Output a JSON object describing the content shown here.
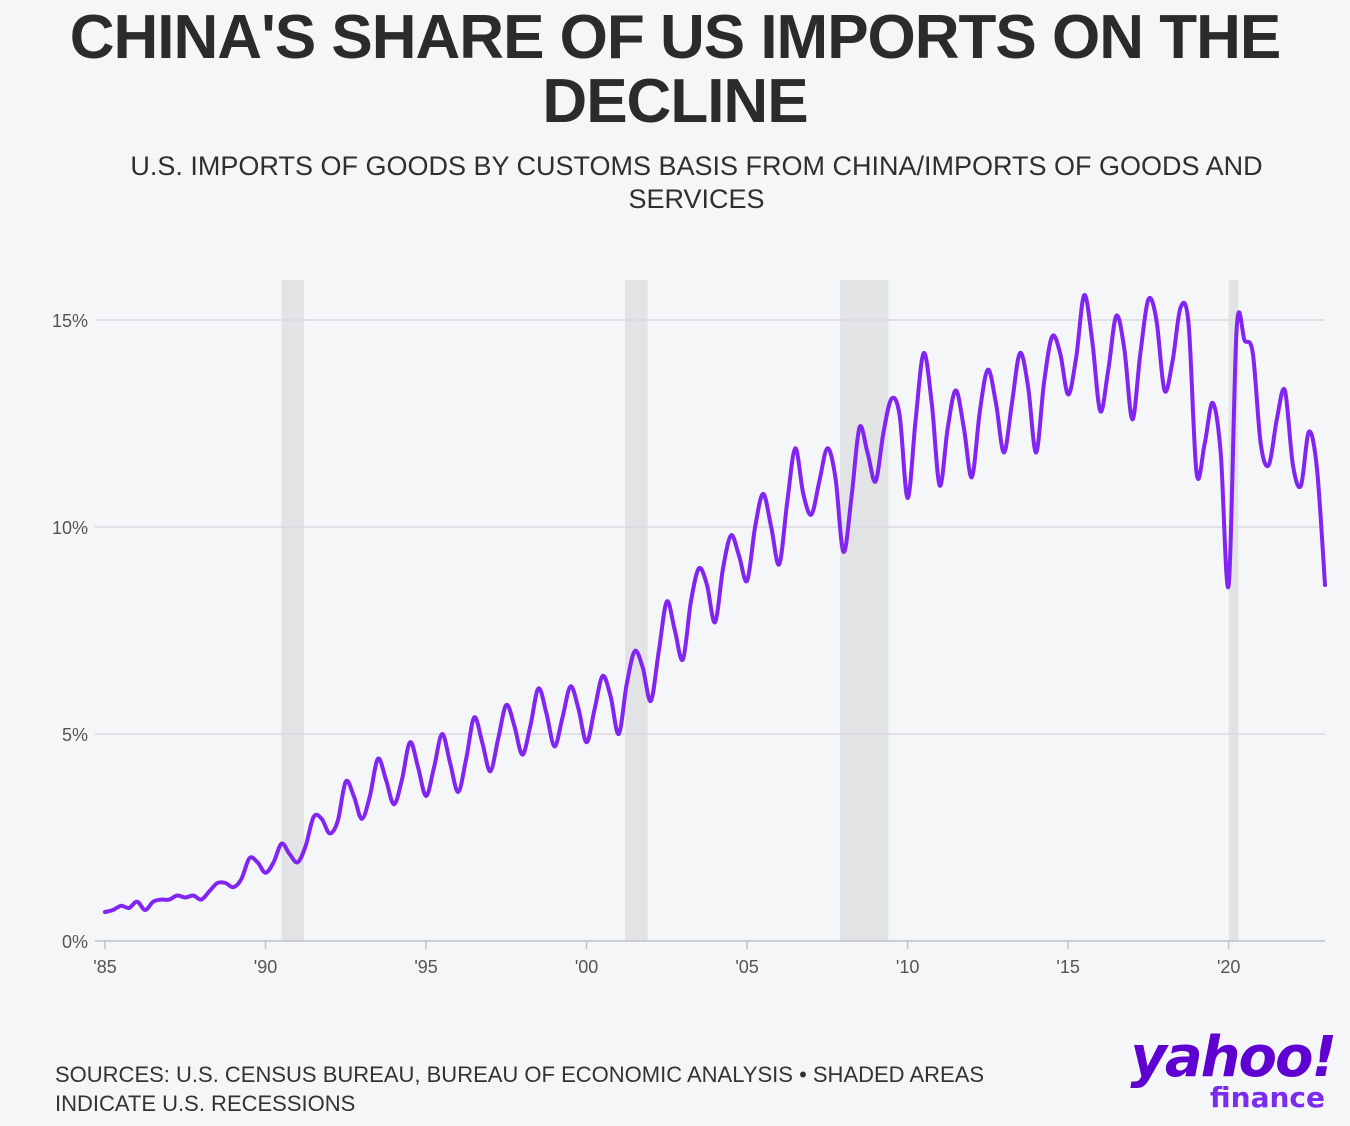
{
  "title": "CHINA'S SHARE OF US IMPORTS ON THE DECLINE",
  "subtitle": "U.S. IMPORTS OF GOODS BY CUSTOMS BASIS FROM CHINA/IMPORTS OF GOODS AND SERVICES",
  "source": "SOURCES: U.S. CENSUS BUREAU, BUREAU OF ECONOMIC ANALYSIS • SHADED AREAS INDICATE U.S. RECESSIONS",
  "logo": {
    "word": "yahoo!",
    "sub": "finance"
  },
  "colors": {
    "line": "#8224f2",
    "recession": "#e1e3e5",
    "grid": "#d9dadd",
    "axis": "#bfc2c6",
    "brand": "#5f01d1"
  },
  "chart_data": {
    "type": "line",
    "title": "CHINA'S SHARE OF US IMPORTS ON THE DECLINE",
    "subtitle": "U.S. IMPORTS OF GOODS BY CUSTOMS BASIS FROM CHINA/IMPORTS OF GOODS AND SERVICES",
    "xlabel": "",
    "ylabel": "",
    "xlim": [
      1985,
      2023
    ],
    "ylim": [
      0,
      16
    ],
    "y_ticks": [
      0,
      5,
      10,
      15
    ],
    "y_tick_labels": [
      "0%",
      "5%",
      "10%",
      "15%"
    ],
    "x_ticks": [
      1985,
      1990,
      1995,
      2000,
      2005,
      2010,
      2015,
      2020
    ],
    "x_tick_labels": [
      "'85",
      "'90",
      "'95",
      "'00",
      "'05",
      "'10",
      "'15",
      "'20"
    ],
    "grid": true,
    "recessions": [
      [
        1990.5,
        1991.2
      ],
      [
        2001.2,
        2001.9
      ],
      [
        2007.9,
        2009.4
      ],
      [
        2020.0,
        2020.3
      ]
    ],
    "series": [
      {
        "x": [
          1985.0,
          1985.25,
          1985.5,
          1985.75,
          1986.0,
          1986.25,
          1986.5,
          1986.75,
          1987.0,
          1987.25,
          1987.5,
          1987.75,
          1988.0,
          1988.25,
          1988.5,
          1988.75,
          1989.0,
          1989.25,
          1989.5,
          1989.75,
          1990.0,
          1990.25,
          1990.5,
          1990.75,
          1991.0,
          1991.25,
          1991.5,
          1991.75,
          1992.0,
          1992.25,
          1992.5,
          1992.75,
          1993.0,
          1993.25,
          1993.5,
          1993.75,
          1994.0,
          1994.25,
          1994.5,
          1994.75,
          1995.0,
          1995.25,
          1995.5,
          1995.75,
          1996.0,
          1996.25,
          1996.5,
          1996.75,
          1997.0,
          1997.25,
          1997.5,
          1997.75,
          1998.0,
          1998.25,
          1998.5,
          1998.75,
          1999.0,
          1999.25,
          1999.5,
          1999.75,
          2000.0,
          2000.25,
          2000.5,
          2000.75,
          2001.0,
          2001.25,
          2001.5,
          2001.75,
          2002.0,
          2002.25,
          2002.5,
          2002.75,
          2003.0,
          2003.25,
          2003.5,
          2003.75,
          2004.0,
          2004.25,
          2004.5,
          2004.75,
          2005.0,
          2005.25,
          2005.5,
          2005.75,
          2006.0,
          2006.25,
          2006.5,
          2006.75,
          2007.0,
          2007.25,
          2007.5,
          2007.75,
          2008.0,
          2008.25,
          2008.5,
          2008.75,
          2009.0,
          2009.25,
          2009.5,
          2009.75,
          2010.0,
          2010.25,
          2010.5,
          2010.75,
          2011.0,
          2011.25,
          2011.5,
          2011.75,
          2012.0,
          2012.25,
          2012.5,
          2012.75,
          2013.0,
          2013.25,
          2013.5,
          2013.75,
          2014.0,
          2014.25,
          2014.5,
          2014.75,
          2015.0,
          2015.25,
          2015.5,
          2015.75,
          2016.0,
          2016.25,
          2016.5,
          2016.75,
          2017.0,
          2017.25,
          2017.5,
          2017.75,
          2018.0,
          2018.25,
          2018.5,
          2018.75,
          2019.0,
          2019.25,
          2019.5,
          2019.75,
          2020.0,
          2020.25,
          2020.5,
          2020.75,
          2021.0,
          2021.25,
          2021.5,
          2021.75,
          2022.0,
          2022.25,
          2022.5,
          2022.75,
          2023.0
        ],
        "values": [
          0.7,
          0.75,
          0.85,
          0.8,
          0.95,
          0.75,
          0.95,
          1.0,
          1.0,
          1.1,
          1.05,
          1.1,
          1.0,
          1.2,
          1.4,
          1.4,
          1.3,
          1.5,
          2.0,
          1.9,
          1.65,
          1.9,
          2.35,
          2.1,
          1.9,
          2.3,
          3.0,
          2.95,
          2.6,
          2.9,
          3.85,
          3.5,
          2.95,
          3.5,
          4.4,
          3.9,
          3.3,
          3.9,
          4.8,
          4.2,
          3.5,
          4.2,
          5.0,
          4.3,
          3.6,
          4.4,
          5.4,
          4.8,
          4.1,
          4.9,
          5.7,
          5.2,
          4.5,
          5.2,
          6.1,
          5.5,
          4.7,
          5.4,
          6.15,
          5.6,
          4.8,
          5.6,
          6.4,
          5.9,
          5.0,
          6.2,
          7.0,
          6.6,
          5.8,
          7.0,
          8.2,
          7.5,
          6.8,
          8.2,
          9.0,
          8.6,
          7.7,
          9.0,
          9.8,
          9.3,
          8.7,
          10.0,
          10.8,
          10.0,
          9.1,
          10.6,
          11.9,
          10.8,
          10.3,
          11.1,
          11.9,
          11.2,
          9.4,
          10.7,
          12.4,
          11.8,
          11.1,
          12.3,
          13.1,
          12.7,
          10.7,
          12.6,
          14.2,
          13.0,
          11.0,
          12.4,
          13.3,
          12.4,
          11.2,
          12.8,
          13.8,
          13.0,
          11.8,
          13.0,
          14.2,
          13.4,
          11.8,
          13.5,
          14.6,
          14.2,
          13.2,
          14.1,
          15.6,
          14.5,
          12.8,
          13.8,
          15.1,
          14.3,
          12.6,
          14.2,
          15.5,
          15.0,
          13.3,
          14.0,
          15.3,
          14.9,
          11.3,
          12.0,
          13.0,
          11.8,
          8.6,
          14.8,
          14.5,
          14.2,
          12.0,
          11.5,
          12.6,
          13.3,
          11.5,
          11.0,
          12.3,
          11.4,
          8.6
        ]
      }
    ]
  }
}
